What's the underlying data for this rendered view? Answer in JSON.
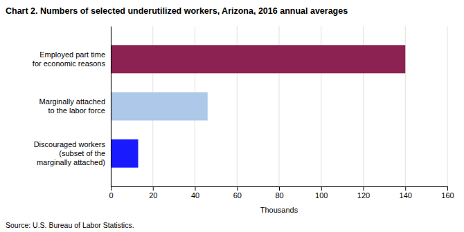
{
  "chart_data": {
    "type": "bar",
    "orientation": "horizontal",
    "title": "Chart 2. Numbers of selected underutilized workers, Arizona, 2016 annual averages",
    "categories": [
      "Discouraged workers\n(subset of the\nmarginally attached)",
      "Marginally attached\nto the labor force",
      "Employed part time\nfor economic reasons"
    ],
    "values": [
      13,
      46,
      140
    ],
    "colors": [
      "#1a1aff",
      "#adc8e8",
      "#8b2252"
    ],
    "xlabel": "Thousands",
    "xlim": [
      0,
      160
    ],
    "xticks": [
      0,
      20,
      40,
      60,
      80,
      100,
      120,
      140,
      160
    ],
    "grid": true,
    "source": "Source: U.S. Bureau of Labor Statistics."
  }
}
